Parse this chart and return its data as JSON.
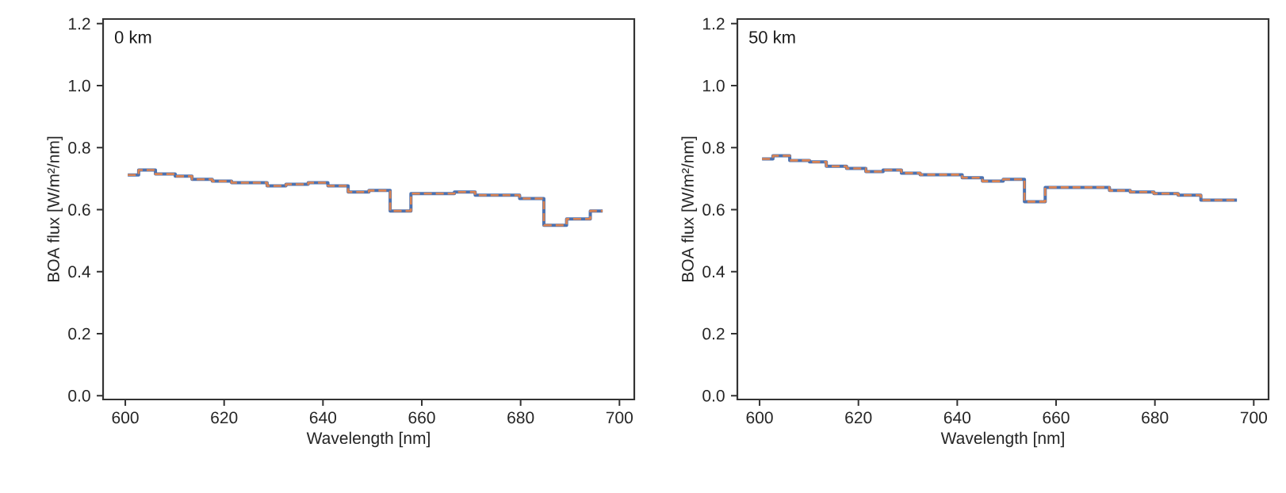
{
  "chart_data": [
    {
      "type": "step",
      "annotations": [
        "0 km"
      ],
      "xlabel": "Wavelength [nm]",
      "ylabel": "BOA flux [W/m²/nm]",
      "x": [
        600.5,
        602.7,
        606.1,
        610.1,
        613.5,
        617.6,
        621.5,
        628.7,
        632.5,
        637,
        641,
        645.1,
        649.3,
        653.6,
        657.8,
        666.6,
        670.8,
        679.8,
        684.7,
        689.3,
        694.1,
        696.6
      ],
      "series": [
        {
          "color": "#4c72b0",
          "line_style": "solid",
          "values": [
            0.712,
            0.728,
            0.715,
            0.708,
            0.698,
            0.692,
            0.687,
            0.677,
            0.682,
            0.687,
            0.677,
            0.657,
            0.662,
            0.596,
            0.652,
            0.657,
            0.647,
            0.636,
            0.55,
            0.57,
            0.596,
            0.596
          ]
        },
        {
          "color": "#dd8452",
          "line_style": "dashed",
          "values": [
            0.712,
            0.728,
            0.715,
            0.708,
            0.698,
            0.692,
            0.687,
            0.677,
            0.682,
            0.687,
            0.677,
            0.657,
            0.662,
            0.596,
            0.652,
            0.657,
            0.647,
            0.636,
            0.55,
            0.57,
            0.596,
            0.596
          ]
        }
      ],
      "xlim": [
        595.5,
        703
      ],
      "ylim": [
        -0.012,
        1.215
      ],
      "xticks": [
        600,
        620,
        640,
        660,
        680,
        700
      ],
      "yticks": [
        {
          "value": 0,
          "label": "0.0"
        },
        {
          "value": 0.2,
          "label": "0.2"
        },
        {
          "value": 0.4,
          "label": "0.4"
        },
        {
          "value": 0.6,
          "label": "0.6"
        },
        {
          "value": 0.8,
          "label": "0.8"
        },
        {
          "value": 1.0,
          "label": "1.0"
        },
        {
          "value": 1.2,
          "label": "1.2"
        }
      ],
      "grid": false
    },
    {
      "type": "step",
      "annotations": [
        "50 km"
      ],
      "xlabel": "Wavelength [nm]",
      "ylabel": "BOA flux [W/m²/nm]",
      "x": [
        600.5,
        602.7,
        606.1,
        610.1,
        613.5,
        617.6,
        621.5,
        625,
        628.7,
        632.5,
        641,
        645.1,
        649.3,
        653.6,
        657.8,
        670.8,
        675,
        679.8,
        684.7,
        689.3,
        696.6
      ],
      "series": [
        {
          "color": "#4c72b0",
          "line_style": "solid",
          "values": [
            0.764,
            0.774,
            0.759,
            0.754,
            0.74,
            0.733,
            0.723,
            0.728,
            0.718,
            0.713,
            0.703,
            0.692,
            0.698,
            0.626,
            0.672,
            0.662,
            0.657,
            0.652,
            0.647,
            0.631,
            0.631
          ]
        },
        {
          "color": "#dd8452",
          "line_style": "dashed",
          "values": [
            0.764,
            0.774,
            0.759,
            0.754,
            0.74,
            0.733,
            0.723,
            0.728,
            0.718,
            0.713,
            0.703,
            0.692,
            0.698,
            0.626,
            0.672,
            0.662,
            0.657,
            0.652,
            0.647,
            0.631,
            0.631
          ]
        }
      ],
      "xlim": [
        595.5,
        703
      ],
      "ylim": [
        -0.012,
        1.215
      ],
      "xticks": [
        600,
        620,
        640,
        660,
        680,
        700
      ],
      "yticks": [
        {
          "value": 0,
          "label": "0.0"
        },
        {
          "value": 0.2,
          "label": "0.2"
        },
        {
          "value": 0.4,
          "label": "0.4"
        },
        {
          "value": 0.6,
          "label": "0.6"
        },
        {
          "value": 0.8,
          "label": "0.8"
        },
        {
          "value": 1.0,
          "label": "1.0"
        },
        {
          "value": 1.2,
          "label": "1.2"
        }
      ],
      "grid": false
    }
  ]
}
